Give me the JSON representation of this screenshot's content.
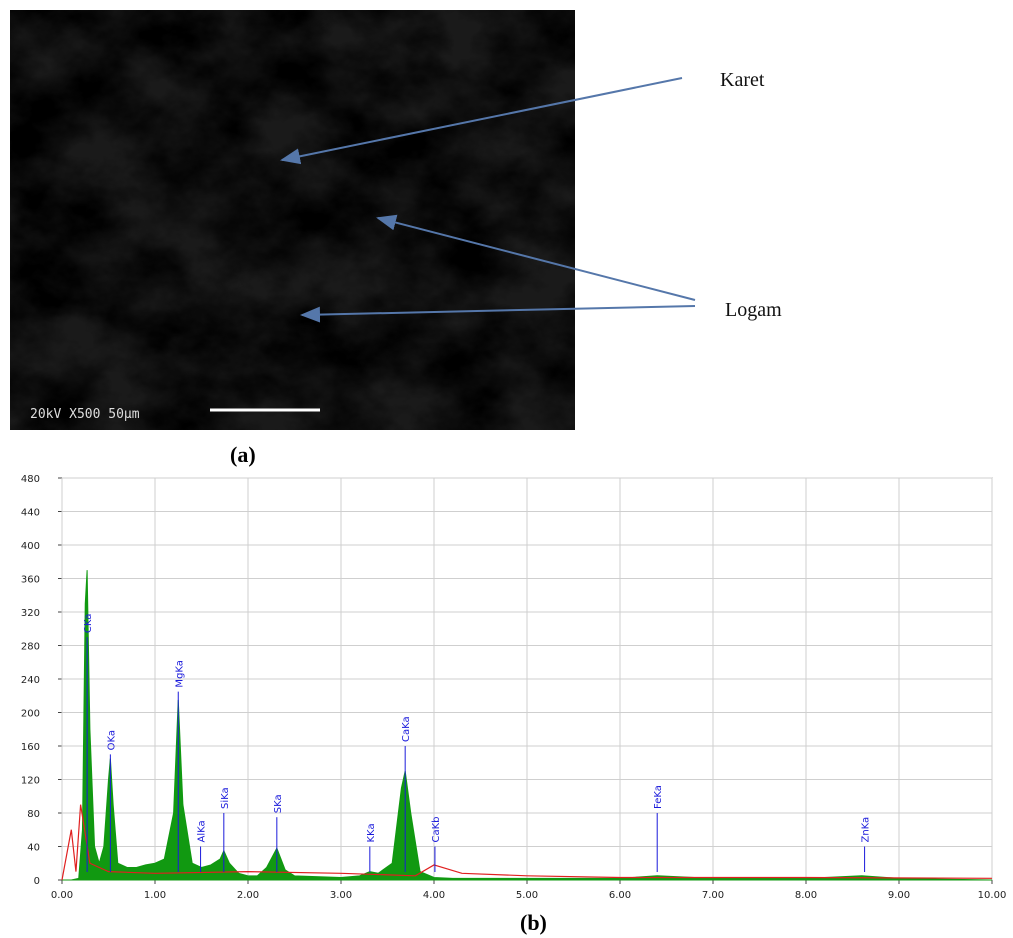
{
  "figure": {
    "image_a": {
      "labels": [
        "Karet",
        "Logam"
      ],
      "info": "20kV  X500  50µm",
      "caption": "(a)"
    },
    "caption_b": "(b)",
    "chart_data": {
      "type": "area",
      "xlim": [
        0,
        10
      ],
      "ylim": [
        0,
        480
      ],
      "xticks": [
        {
          "value": 0,
          "label": "0.00"
        },
        {
          "value": 1,
          "label": "1.00"
        },
        {
          "value": 2,
          "label": "2.00"
        },
        {
          "value": 3,
          "label": "3.00"
        },
        {
          "value": 4,
          "label": "4.00"
        },
        {
          "value": 5,
          "label": "5.00"
        },
        {
          "value": 6,
          "label": "6.00"
        },
        {
          "value": 7,
          "label": "7.00"
        },
        {
          "value": 8,
          "label": "8.00"
        },
        {
          "value": 9,
          "label": "9.00"
        },
        {
          "value": 10,
          "label": "10.00"
        }
      ],
      "yticks": [
        0,
        40,
        80,
        120,
        160,
        200,
        240,
        280,
        320,
        360,
        400,
        440,
        480
      ],
      "grid": true,
      "series": [
        {
          "color": "#119911",
          "style": "area",
          "x": [
            0.0,
            0.1,
            0.18,
            0.22,
            0.25,
            0.27,
            0.3,
            0.35,
            0.4,
            0.45,
            0.5,
            0.52,
            0.55,
            0.6,
            0.7,
            0.8,
            0.9,
            1.0,
            1.1,
            1.2,
            1.25,
            1.3,
            1.4,
            1.5,
            1.6,
            1.7,
            1.74,
            1.8,
            1.9,
            2.0,
            2.1,
            2.2,
            2.31,
            2.4,
            2.5,
            3.0,
            3.2,
            3.31,
            3.4,
            3.55,
            3.65,
            3.69,
            3.75,
            3.85,
            4.0,
            4.2,
            5.0,
            6.0,
            6.4,
            7.0,
            8.0,
            8.6,
            9.0,
            10.0
          ],
          "values": [
            0,
            0,
            2,
            60,
            330,
            370,
            180,
            40,
            20,
            40,
            120,
            145,
            90,
            20,
            15,
            15,
            18,
            20,
            25,
            80,
            215,
            90,
            20,
            15,
            18,
            25,
            35,
            20,
            8,
            5,
            5,
            15,
            38,
            12,
            5,
            3,
            5,
            10,
            8,
            20,
            110,
            130,
            80,
            10,
            3,
            2,
            2,
            2,
            5,
            2,
            2,
            5,
            2,
            0
          ]
        },
        {
          "color": "#e02020",
          "style": "line",
          "x": [
            0,
            0.1,
            0.15,
            0.2,
            0.3,
            0.5,
            1.0,
            2.0,
            3.0,
            3.8,
            4.0,
            4.3,
            5.0,
            6.0,
            8.0,
            10.0
          ],
          "values": [
            0,
            60,
            10,
            90,
            20,
            10,
            8,
            10,
            8,
            5,
            18,
            8,
            5,
            3,
            3,
            2
          ]
        }
      ],
      "annotations": [
        {
          "text": "CKa",
          "x": 0.27,
          "y": 290
        },
        {
          "text": "OKa",
          "x": 0.52,
          "y": 150
        },
        {
          "text": "MgKa",
          "x": 1.25,
          "y": 225
        },
        {
          "text": "AlKa",
          "x": 1.49,
          "y": 40
        },
        {
          "text": "SiKa",
          "x": 1.74,
          "y": 80
        },
        {
          "text": "SKa",
          "x": 2.31,
          "y": 75
        },
        {
          "text": "KKa",
          "x": 3.31,
          "y": 40
        },
        {
          "text": "CaKa",
          "x": 3.69,
          "y": 160
        },
        {
          "text": "CaKb",
          "x": 4.01,
          "y": 40
        },
        {
          "text": "FeKa",
          "x": 6.4,
          "y": 80
        },
        {
          "text": "ZnKa",
          "x": 8.63,
          "y": 40
        }
      ],
      "annotation_color": "#1a1adb"
    }
  }
}
